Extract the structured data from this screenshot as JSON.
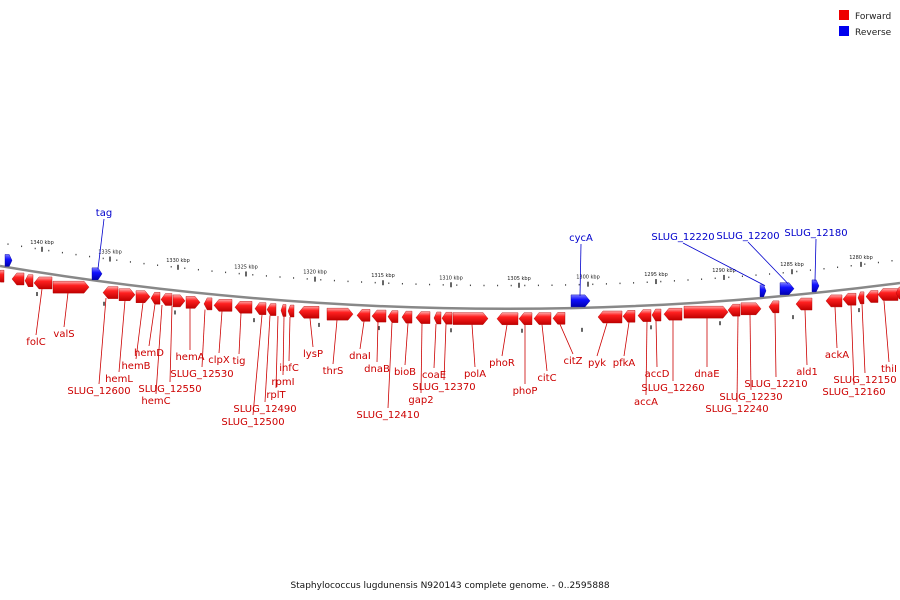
{
  "legend": {
    "forward": {
      "label": "Forward",
      "color": "#ee0000"
    },
    "reverse": {
      "label": "Reverse",
      "color": "#0000ee"
    }
  },
  "caption": "Staphylococcus lugdunensis N920143 complete genome. - 0..2595888",
  "scale": {
    "tick_labels": [
      "1340 kbp",
      "1335 kbp",
      "1330 kbp",
      "1325 kbp",
      "1320 kbp",
      "1315 kbp",
      "1310 kbp",
      "1305 kbp",
      "1300 kbp",
      "1295 kbp",
      "1290 kbp",
      "1285 kbp",
      "1280 kbp"
    ]
  },
  "forward_labels": [
    "folC",
    "valS",
    "SLUG_12600",
    "hemL",
    "hemB",
    "hemD",
    "SLUG_12550",
    "hemC",
    "hemA",
    "SLUG_12530",
    "clpX",
    "tig",
    "SLUG_12500",
    "SLUG_12490",
    "rplT",
    "rpmI",
    "infC",
    "lysP",
    "thrS",
    "dnaI",
    "dnaB",
    "SLUG_12410",
    "bioB",
    "gap2",
    "coaE",
    "SLUG_12370",
    "polA",
    "phoR",
    "phoP",
    "citC",
    "citZ",
    "pyk",
    "pfkA",
    "accA",
    "accD",
    "SLUG_12260",
    "dnaE",
    "SLUG_12240",
    "SLUG_12230",
    "SLUG_12210",
    "ald1",
    "ackA",
    "SLUG_12160",
    "SLUG_12150",
    "thiI"
  ],
  "reverse_labels": [
    "tag",
    "cycA",
    "SLUG_12220",
    "SLUG_12200",
    "SLUG_12180"
  ]
}
